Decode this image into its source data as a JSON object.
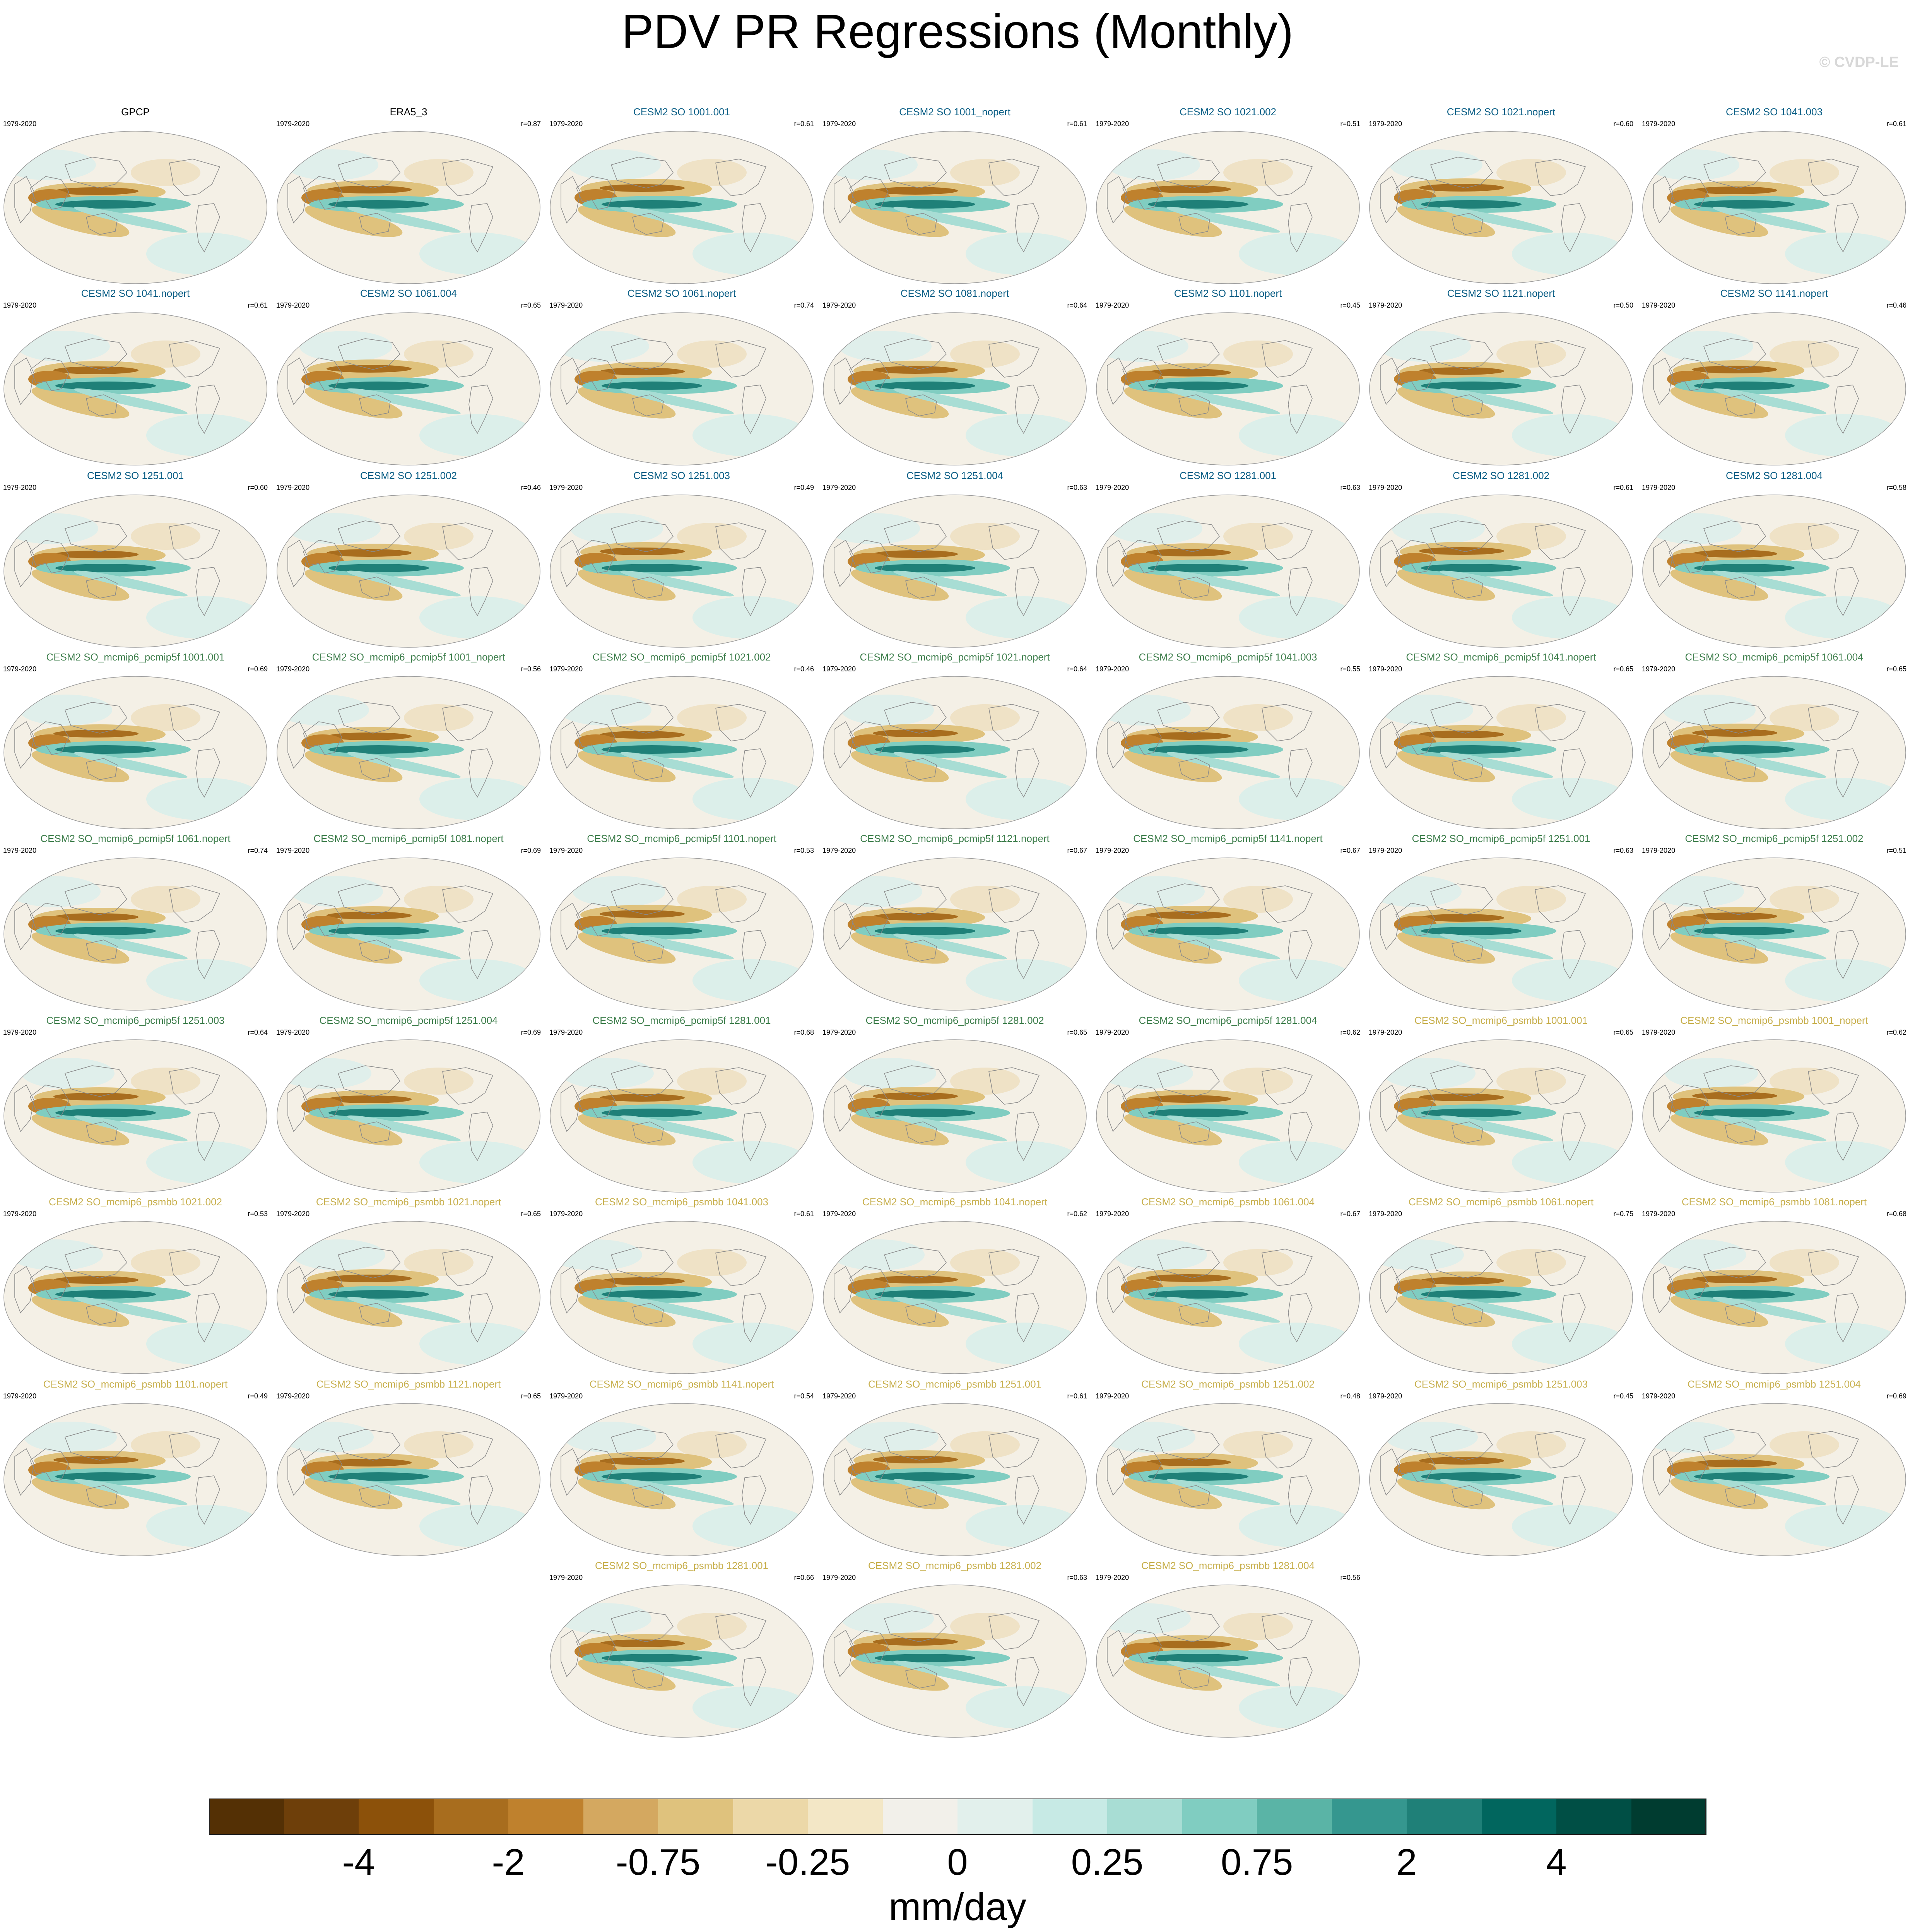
{
  "title": "PDV PR Regressions (Monthly)",
  "credit": "© CVDP-LE",
  "colors": {
    "obs": "#000000",
    "cesm2_so": "#0b5f86",
    "pcmip5f": "#3f7f4d",
    "psmbb": "#c8b04e"
  },
  "panels": [
    {
      "name": "GPCP",
      "period": "1979-2020",
      "r": "",
      "group": "obs"
    },
    {
      "name": "ERA5_3",
      "period": "1979-2020",
      "r": "r=0.87",
      "group": "obs"
    },
    {
      "name": "CESM2 SO 1001.001",
      "period": "1979-2020",
      "r": "r=0.61",
      "group": "cesm2_so"
    },
    {
      "name": "CESM2 SO 1001_nopert",
      "period": "1979-2020",
      "r": "r=0.61",
      "group": "cesm2_so"
    },
    {
      "name": "CESM2 SO 1021.002",
      "period": "1979-2020",
      "r": "r=0.51",
      "group": "cesm2_so"
    },
    {
      "name": "CESM2 SO 1021.nopert",
      "period": "1979-2020",
      "r": "r=0.60",
      "group": "cesm2_so"
    },
    {
      "name": "CESM2 SO 1041.003",
      "period": "1979-2020",
      "r": "r=0.61",
      "group": "cesm2_so"
    },
    {
      "name": "CESM2 SO 1041.nopert",
      "period": "1979-2020",
      "r": "r=0.61",
      "group": "cesm2_so"
    },
    {
      "name": "CESM2 SO 1061.004",
      "period": "1979-2020",
      "r": "r=0.65",
      "group": "cesm2_so"
    },
    {
      "name": "CESM2 SO 1061.nopert",
      "period": "1979-2020",
      "r": "r=0.74",
      "group": "cesm2_so"
    },
    {
      "name": "CESM2 SO 1081.nopert",
      "period": "1979-2020",
      "r": "r=0.64",
      "group": "cesm2_so"
    },
    {
      "name": "CESM2 SO 1101.nopert",
      "period": "1979-2020",
      "r": "r=0.45",
      "group": "cesm2_so"
    },
    {
      "name": "CESM2 SO 1121.nopert",
      "period": "1979-2020",
      "r": "r=0.50",
      "group": "cesm2_so"
    },
    {
      "name": "CESM2 SO 1141.nopert",
      "period": "1979-2020",
      "r": "r=0.46",
      "group": "cesm2_so"
    },
    {
      "name": "CESM2 SO 1251.001",
      "period": "1979-2020",
      "r": "r=0.60",
      "group": "cesm2_so"
    },
    {
      "name": "CESM2 SO 1251.002",
      "period": "1979-2020",
      "r": "r=0.46",
      "group": "cesm2_so"
    },
    {
      "name": "CESM2 SO 1251.003",
      "period": "1979-2020",
      "r": "r=0.49",
      "group": "cesm2_so"
    },
    {
      "name": "CESM2 SO 1251.004",
      "period": "1979-2020",
      "r": "r=0.63",
      "group": "cesm2_so"
    },
    {
      "name": "CESM2 SO 1281.001",
      "period": "1979-2020",
      "r": "r=0.63",
      "group": "cesm2_so"
    },
    {
      "name": "CESM2 SO 1281.002",
      "period": "1979-2020",
      "r": "r=0.61",
      "group": "cesm2_so"
    },
    {
      "name": "CESM2 SO 1281.004",
      "period": "1979-2020",
      "r": "r=0.58",
      "group": "cesm2_so"
    },
    {
      "name": "CESM2 SO_mcmip6_pcmip5f 1001.001",
      "period": "1979-2020",
      "r": "r=0.69",
      "group": "pcmip5f"
    },
    {
      "name": "CESM2 SO_mcmip6_pcmip5f 1001_nopert",
      "period": "1979-2020",
      "r": "r=0.56",
      "group": "pcmip5f"
    },
    {
      "name": "CESM2 SO_mcmip6_pcmip5f 1021.002",
      "period": "1979-2020",
      "r": "r=0.46",
      "group": "pcmip5f"
    },
    {
      "name": "CESM2 SO_mcmip6_pcmip5f 1021.nopert",
      "period": "1979-2020",
      "r": "r=0.64",
      "group": "pcmip5f"
    },
    {
      "name": "CESM2 SO_mcmip6_pcmip5f 1041.003",
      "period": "1979-2020",
      "r": "r=0.55",
      "group": "pcmip5f"
    },
    {
      "name": "CESM2 SO_mcmip6_pcmip5f 1041.nopert",
      "period": "1979-2020",
      "r": "r=0.65",
      "group": "pcmip5f"
    },
    {
      "name": "CESM2 SO_mcmip6_pcmip5f 1061.004",
      "period": "1979-2020",
      "r": "r=0.65",
      "group": "pcmip5f"
    },
    {
      "name": "CESM2 SO_mcmip6_pcmip5f 1061.nopert",
      "period": "1979-2020",
      "r": "r=0.74",
      "group": "pcmip5f"
    },
    {
      "name": "CESM2 SO_mcmip6_pcmip5f 1081.nopert",
      "period": "1979-2020",
      "r": "r=0.69",
      "group": "pcmip5f"
    },
    {
      "name": "CESM2 SO_mcmip6_pcmip5f 1101.nopert",
      "period": "1979-2020",
      "r": "r=0.53",
      "group": "pcmip5f"
    },
    {
      "name": "CESM2 SO_mcmip6_pcmip5f 1121.nopert",
      "period": "1979-2020",
      "r": "r=0.67",
      "group": "pcmip5f"
    },
    {
      "name": "CESM2 SO_mcmip6_pcmip5f 1141.nopert",
      "period": "1979-2020",
      "r": "r=0.67",
      "group": "pcmip5f"
    },
    {
      "name": "CESM2 SO_mcmip6_pcmip5f 1251.001",
      "period": "1979-2020",
      "r": "r=0.63",
      "group": "pcmip5f"
    },
    {
      "name": "CESM2 SO_mcmip6_pcmip5f 1251.002",
      "period": "1979-2020",
      "r": "r=0.51",
      "group": "pcmip5f"
    },
    {
      "name": "CESM2 SO_mcmip6_pcmip5f 1251.003",
      "period": "1979-2020",
      "r": "r=0.64",
      "group": "pcmip5f"
    },
    {
      "name": "CESM2 SO_mcmip6_pcmip5f 1251.004",
      "period": "1979-2020",
      "r": "r=0.69",
      "group": "pcmip5f"
    },
    {
      "name": "CESM2 SO_mcmip6_pcmip5f 1281.001",
      "period": "1979-2020",
      "r": "r=0.68",
      "group": "pcmip5f"
    },
    {
      "name": "CESM2 SO_mcmip6_pcmip5f 1281.002",
      "period": "1979-2020",
      "r": "r=0.65",
      "group": "pcmip5f"
    },
    {
      "name": "CESM2 SO_mcmip6_pcmip5f 1281.004",
      "period": "1979-2020",
      "r": "r=0.62",
      "group": "pcmip5f"
    },
    {
      "name": "CESM2 SO_mcmip6_psmbb 1001.001",
      "period": "1979-2020",
      "r": "r=0.65",
      "group": "psmbb"
    },
    {
      "name": "CESM2 SO_mcmip6_psmbb 1001_nopert",
      "period": "1979-2020",
      "r": "r=0.62",
      "group": "psmbb"
    },
    {
      "name": "CESM2 SO_mcmip6_psmbb 1021.002",
      "period": "1979-2020",
      "r": "r=0.53",
      "group": "psmbb"
    },
    {
      "name": "CESM2 SO_mcmip6_psmbb 1021.nopert",
      "period": "1979-2020",
      "r": "r=0.65",
      "group": "psmbb"
    },
    {
      "name": "CESM2 SO_mcmip6_psmbb 1041.003",
      "period": "1979-2020",
      "r": "r=0.61",
      "group": "psmbb"
    },
    {
      "name": "CESM2 SO_mcmip6_psmbb 1041.nopert",
      "period": "1979-2020",
      "r": "r=0.62",
      "group": "psmbb"
    },
    {
      "name": "CESM2 SO_mcmip6_psmbb 1061.004",
      "period": "1979-2020",
      "r": "r=0.67",
      "group": "psmbb"
    },
    {
      "name": "CESM2 SO_mcmip6_psmbb 1061.nopert",
      "period": "1979-2020",
      "r": "r=0.75",
      "group": "psmbb"
    },
    {
      "name": "CESM2 SO_mcmip6_psmbb 1081.nopert",
      "period": "1979-2020",
      "r": "r=0.68",
      "group": "psmbb"
    },
    {
      "name": "CESM2 SO_mcmip6_psmbb 1101.nopert",
      "period": "1979-2020",
      "r": "r=0.49",
      "group": "psmbb"
    },
    {
      "name": "CESM2 SO_mcmip6_psmbb 1121.nopert",
      "period": "1979-2020",
      "r": "r=0.65",
      "group": "psmbb"
    },
    {
      "name": "CESM2 SO_mcmip6_psmbb 1141.nopert",
      "period": "1979-2020",
      "r": "r=0.54",
      "group": "psmbb"
    },
    {
      "name": "CESM2 SO_mcmip6_psmbb 1251.001",
      "period": "1979-2020",
      "r": "r=0.61",
      "group": "psmbb"
    },
    {
      "name": "CESM2 SO_mcmip6_psmbb 1251.002",
      "period": "1979-2020",
      "r": "r=0.48",
      "group": "psmbb"
    },
    {
      "name": "CESM2 SO_mcmip6_psmbb 1251.003",
      "period": "1979-2020",
      "r": "r=0.45",
      "group": "psmbb"
    },
    {
      "name": "CESM2 SO_mcmip6_psmbb 1251.004",
      "period": "1979-2020",
      "r": "r=0.69",
      "group": "psmbb"
    },
    {
      "name": "CESM2 SO_mcmip6_psmbb 1281.001",
      "period": "1979-2020",
      "r": "r=0.66",
      "group": "psmbb"
    },
    {
      "name": "CESM2 SO_mcmip6_psmbb 1281.002",
      "period": "1979-2020",
      "r": "r=0.63",
      "group": "psmbb"
    },
    {
      "name": "CESM2 SO_mcmip6_psmbb 1281.004",
      "period": "1979-2020",
      "r": "r=0.56",
      "group": "psmbb"
    }
  ],
  "colorbar": {
    "units": "mm/day",
    "colors": [
      "#543005",
      "#6e3f0a",
      "#8c510a",
      "#a86d1e",
      "#bf812d",
      "#d4a860",
      "#dfc27d",
      "#ecd8a8",
      "#f3e7c6",
      "#f2f0ea",
      "#e2f0ec",
      "#c7eae5",
      "#a8ddd4",
      "#80cdc1",
      "#5ab4a6",
      "#35978f",
      "#1f8078",
      "#01665e",
      "#004f45",
      "#003c30"
    ],
    "labels": [
      {
        "text": "-4",
        "boundary": 2
      },
      {
        "text": "-2",
        "boundary": 4
      },
      {
        "text": "-0.75",
        "boundary": 6
      },
      {
        "text": "-0.25",
        "boundary": 8
      },
      {
        "text": "0",
        "boundary": 10
      },
      {
        "text": "0.25",
        "boundary": 12
      },
      {
        "text": "0.75",
        "boundary": 14
      },
      {
        "text": "2",
        "boundary": 16
      },
      {
        "text": "4",
        "boundary": 18
      }
    ]
  }
}
